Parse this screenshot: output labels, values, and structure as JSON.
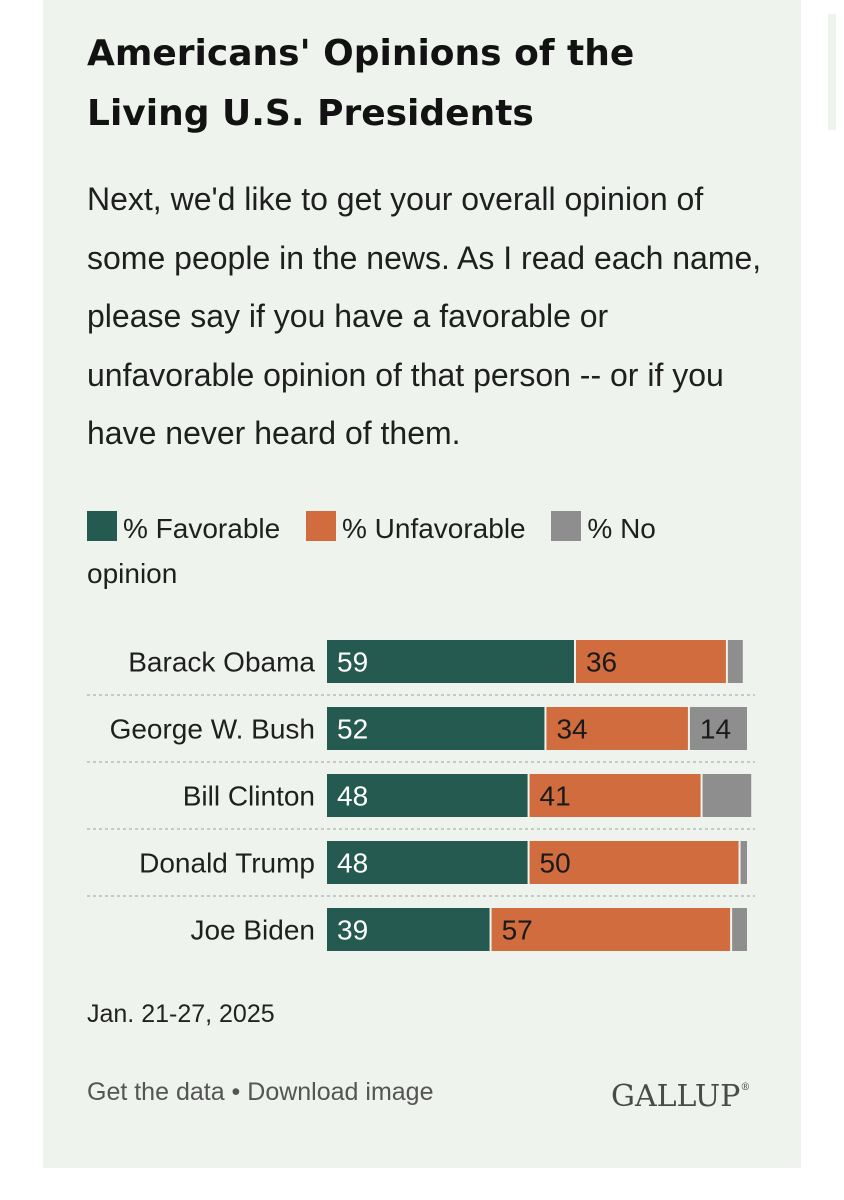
{
  "title": "Americans' Opinions of the Living U.S. Presidents",
  "subtitle": "Next, we'd like to get your overall opinion of some people in the news. As I read each name, please say if you have a favorable or unfavorable opinion of that person -- or if you have never heard of them.",
  "legend": [
    {
      "label": "% Favorable",
      "color": "#245a50"
    },
    {
      "label": "% Unfavorable",
      "color": "#d16c3e"
    },
    {
      "label": "% No opinion",
      "color": "#8e8e8e"
    }
  ],
  "chart_data": {
    "type": "bar",
    "orientation": "horizontal",
    "stacked": true,
    "categories": [
      "Barack Obama",
      "George W. Bush",
      "Bill Clinton",
      "Donald Trump",
      "Joe Biden"
    ],
    "series": [
      {
        "name": "% Favorable",
        "color": "#245a50",
        "values": [
          59,
          52,
          48,
          48,
          39
        ]
      },
      {
        "name": "% Unfavorable",
        "color": "#d16c3e",
        "values": [
          36,
          34,
          41,
          50,
          57
        ]
      },
      {
        "name": "% No opinion",
        "color": "#8e8e8e",
        "values": [
          4,
          14,
          12,
          2,
          4
        ]
      }
    ],
    "data_labels": [
      [
        "59",
        "36",
        ""
      ],
      [
        "52",
        "34",
        "14"
      ],
      [
        "48",
        "41",
        ""
      ],
      [
        "48",
        "50",
        ""
      ],
      [
        "39",
        "57",
        ""
      ]
    ],
    "xlim": [
      0,
      100
    ],
    "legend_position": "top"
  },
  "date": "Jan. 21-27, 2025",
  "footer": {
    "get_data": "Get the data",
    "separator": " • ",
    "download": "Download image"
  },
  "logo": {
    "text": "GALLUP",
    "mark": "®"
  }
}
